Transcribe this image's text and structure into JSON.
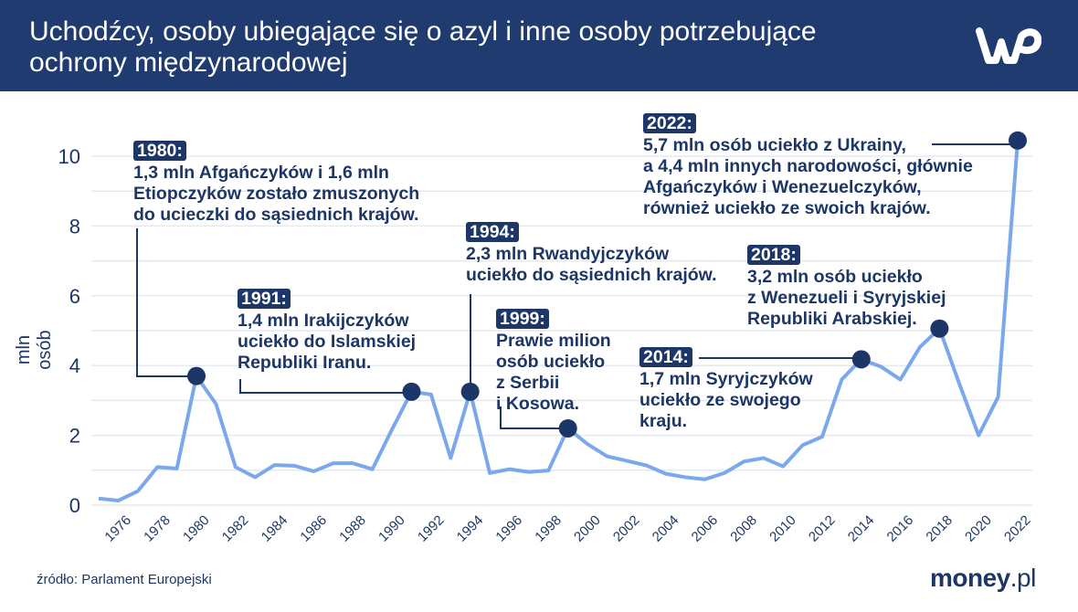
{
  "header": {
    "title_line1": "Uchodźcy, osoby ubiegające się o azyl i inne osoby potrzebujące",
    "title_line2": "ochrony międzynarodowej",
    "logo": "WP"
  },
  "footer": {
    "source": "źródło: Parlament Europejski",
    "brand_main": "money",
    "brand_suffix": ".pl"
  },
  "colors": {
    "header": "#1f3b6f",
    "line": "#7ba7ec",
    "marker": "#1d3668",
    "text": "#1d3668",
    "grid": "#e6e9ef"
  },
  "chart_data": {
    "type": "line",
    "title": "Uchodźcy, osoby ubiegające się o azyl i inne osoby potrzebujące ochrony międzynarodowej",
    "ylabel": "mln osób",
    "xlabel": "",
    "ylim": [
      0,
      10.5
    ],
    "yticks": [
      0,
      2,
      4,
      6,
      8,
      10
    ],
    "xticks": [
      1976,
      1978,
      1980,
      1982,
      1984,
      1986,
      1988,
      1990,
      1992,
      1994,
      1996,
      1998,
      2000,
      2002,
      2004,
      2006,
      2008,
      2010,
      2012,
      2014,
      2016,
      2018,
      2020,
      2022
    ],
    "grid": true,
    "x": [
      1975,
      1976,
      1977,
      1978,
      1979,
      1980,
      1981,
      1982,
      1983,
      1984,
      1985,
      1986,
      1987,
      1988,
      1989,
      1990,
      1991,
      1992,
      1993,
      1994,
      1995,
      1996,
      1997,
      1998,
      1999,
      2000,
      2001,
      2002,
      2003,
      2004,
      2005,
      2006,
      2007,
      2008,
      2009,
      2010,
      2011,
      2012,
      2013,
      2014,
      2015,
      2016,
      2017,
      2018,
      2019,
      2020,
      2021,
      2022
    ],
    "values": [
      0.19,
      0.13,
      0.4,
      1.09,
      1.05,
      3.7,
      2.9,
      1.09,
      0.8,
      1.15,
      1.13,
      0.97,
      1.2,
      1.2,
      1.03,
      2.17,
      3.25,
      3.17,
      1.35,
      3.25,
      0.92,
      1.03,
      0.95,
      0.99,
      2.2,
      1.75,
      1.4,
      1.27,
      1.14,
      0.9,
      0.8,
      0.74,
      0.92,
      1.25,
      1.35,
      1.11,
      1.72,
      1.96,
      3.6,
      4.18,
      3.97,
      3.6,
      4.53,
      5.06,
      3.5,
      2.0,
      3.1,
      10.45
    ],
    "highlighted_years": [
      1980,
      1991,
      1994,
      1999,
      2014,
      2018,
      2022
    ],
    "annotations": [
      {
        "year_label": "1980:",
        "lines": [
          "1,3 mln Afgańczyków i 1,6 mln",
          "Etiopczyków zostało zmuszonych",
          "do ucieczki do sąsiednich krajów."
        ]
      },
      {
        "year_label": "1991:",
        "lines": [
          "1,4 mln Irakijczyków",
          "uciekło do Islamskiej",
          "Republiki Iranu."
        ]
      },
      {
        "year_label": "1994:",
        "lines": [
          "2,3 mln Rwandyjczyków",
          "uciekło do sąsiednich krajów."
        ]
      },
      {
        "year_label": "1999:",
        "lines": [
          "Prawie milion",
          "osób uciekło",
          "z Serbii",
          "i Kosowa."
        ]
      },
      {
        "year_label": "2014:",
        "lines": [
          "1,7 mln Syryjczyków",
          "uciekło ze swojego",
          "kraju."
        ]
      },
      {
        "year_label": "2018:",
        "lines": [
          "3,2 mln osób uciekło",
          "z Wenezueli i Syryjskiej",
          "Republiki Arabskiej."
        ]
      },
      {
        "year_label": "2022:",
        "lines": [
          "5,7 mln osób uciekło z Ukrainy,",
          "a 4,4 mln innych narodowości, głównie",
          "Afgańczyków i Wenezuelczyków,",
          "również uciekło ze swoich krajów."
        ]
      }
    ]
  }
}
